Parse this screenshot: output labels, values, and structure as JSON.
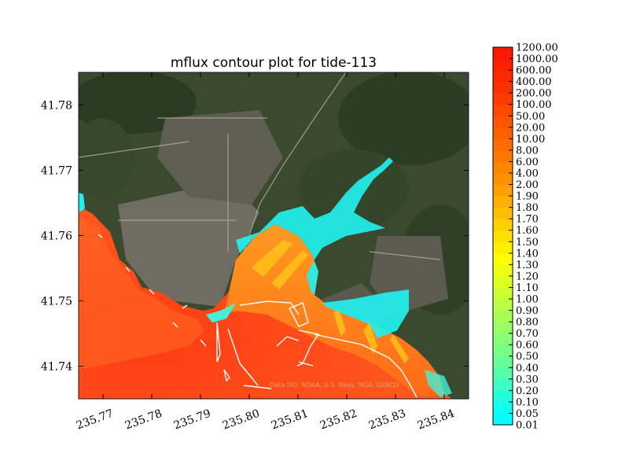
{
  "chart_data": {
    "type": "heatmap",
    "title": "mflux contour plot for tide-113",
    "xlabel": "",
    "ylabel": "",
    "xlim": [
      235.765,
      235.845
    ],
    "ylim": [
      41.735,
      41.785
    ],
    "x_ticks": [
      "235.77",
      "235.78",
      "235.79",
      "235.80",
      "235.81",
      "235.82",
      "235.83",
      "235.84"
    ],
    "y_ticks": [
      "41.74",
      "41.75",
      "41.76",
      "41.77",
      "41.78"
    ],
    "x_tick_values": [
      235.77,
      235.78,
      235.79,
      235.8,
      235.81,
      235.82,
      235.83,
      235.84
    ],
    "y_tick_values": [
      41.74,
      41.75,
      41.76,
      41.77,
      41.78
    ],
    "colorbar": {
      "levels": [
        "0.01",
        "0.05",
        "0.10",
        "0.20",
        "0.30",
        "0.40",
        "0.50",
        "0.60",
        "0.70",
        "0.80",
        "0.90",
        "1.00",
        "1.10",
        "1.20",
        "1.30",
        "1.40",
        "1.50",
        "1.60",
        "1.70",
        "1.80",
        "1.90",
        "2.00",
        "4.00",
        "6.00",
        "8.00",
        "10.00",
        "20.00",
        "50.00",
        "100.00",
        "200.00",
        "400.00",
        "600.00",
        "1000.00",
        "1200.00"
      ],
      "colors": [
        "#00ffff",
        "#11ffef",
        "#22ffdd",
        "#3cffc4",
        "#55ffaa",
        "#66ff99",
        "#77ff88",
        "#88ff77",
        "#99ff66",
        "#aaff55",
        "#bbff44",
        "#ccff33",
        "#ddff22",
        "#eeff11",
        "#ffff00",
        "#fff000",
        "#ffe000",
        "#ffd000",
        "#ffc000",
        "#ffb000",
        "#ffa000",
        "#ff9000",
        "#ff8400",
        "#ff7800",
        "#ff6c00",
        "#ff6000",
        "#ff5400",
        "#ff4800",
        "#ff3c00",
        "#ff3000",
        "#ff2800",
        "#ff2000",
        "#ff1800"
      ]
    },
    "basemap": "satellite imagery",
    "attribution": "Data SIO, NOAA, U.S. Navy, NGA, GEBCO"
  }
}
